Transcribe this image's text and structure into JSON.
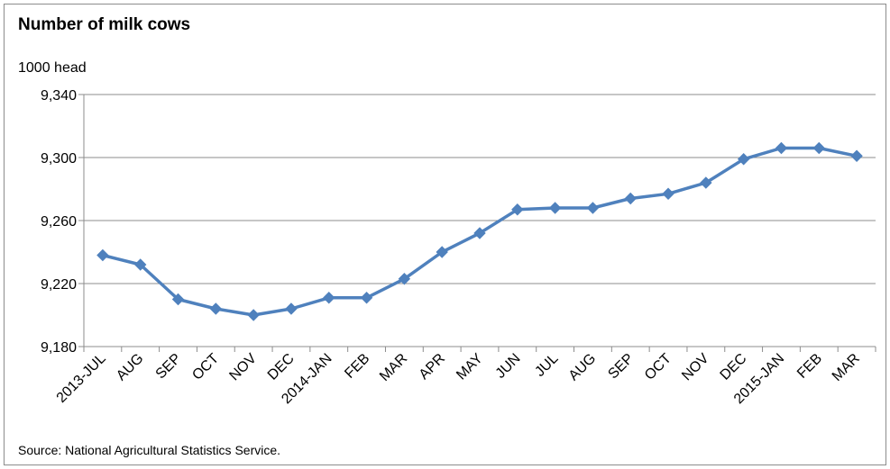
{
  "chart_data": {
    "type": "line",
    "title": "Number of milk cows",
    "ylabel": "1000 head",
    "xlabel": "",
    "ylim": [
      9180,
      9340
    ],
    "yticks": [
      9180,
      9220,
      9260,
      9300,
      9340
    ],
    "ytick_labels": [
      "9,180",
      "9,220",
      "9,260",
      "9,300",
      "9,340"
    ],
    "grid": true,
    "categories": [
      "2013-JUL",
      "AUG",
      "SEP",
      "OCT",
      "NOV",
      "DEC",
      "2014-JAN",
      "FEB",
      "MAR",
      "APR",
      "MAY",
      "JUN",
      "JUL",
      "AUG",
      "SEP",
      "OCT",
      "NOV",
      "DEC",
      "2015-JAN",
      "FEB",
      "MAR"
    ],
    "series": [
      {
        "values": [
          9238,
          9232,
          9210,
          9204,
          9200,
          9204,
          9211,
          9211,
          9223,
          9240,
          9252,
          9267,
          9268,
          9268,
          9274,
          9277,
          9284,
          9299,
          9306,
          9306,
          9301
        ],
        "color": "#4f81bd"
      }
    ],
    "source": "Source: National Agricultural Statistics Service."
  }
}
